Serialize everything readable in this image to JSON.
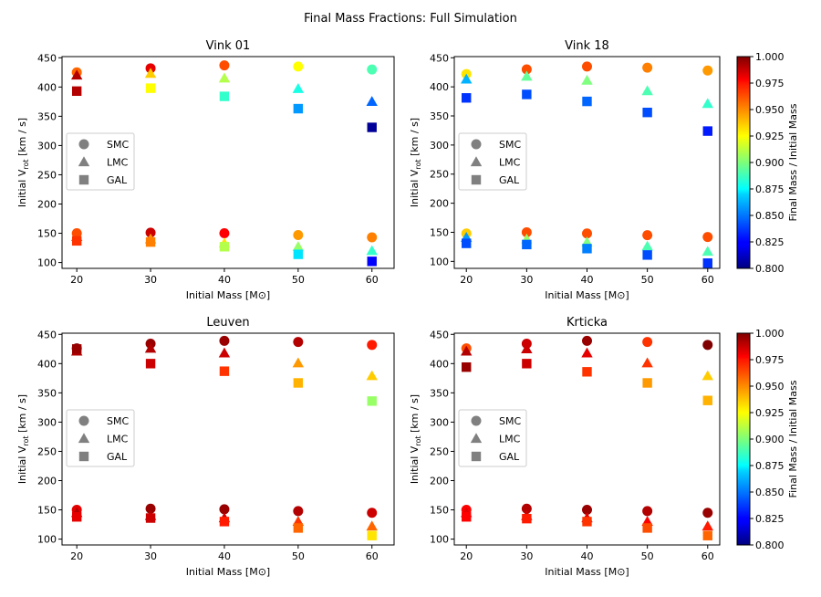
{
  "figure": {
    "title": "Final Mass Fractions: Full Simulation"
  },
  "colorbar": {
    "label": "Final Mass / Initial Mass",
    "colormap": "jet",
    "range": [
      0.8,
      1.0
    ],
    "ticks": [
      "0.800",
      "0.825",
      "0.850",
      "0.875",
      "0.900",
      "0.925",
      "0.950",
      "0.975",
      "1.000"
    ]
  },
  "legend": {
    "entries": [
      {
        "label": "SMC",
        "marker": "circle"
      },
      {
        "label": "LMC",
        "marker": "triangle"
      },
      {
        "label": "GAL",
        "marker": "square"
      }
    ],
    "marker_color": "#808080"
  },
  "chart_data": [
    {
      "type": "scatter",
      "title": "Vink 01",
      "xlabel": "Initial Mass [M",
      "xlabel_symbol": "⊙",
      "xlabel_end": "]",
      "ylabel": "Initial V",
      "ylabel_sub": "rot",
      "ylabel_end": " [km / s]",
      "x_ticks": [
        20,
        30,
        40,
        50,
        60
      ],
      "y_ticks": [
        100,
        150,
        200,
        250,
        300,
        350,
        400,
        450
      ],
      "xlim": [
        18,
        63
      ],
      "ylim": [
        90,
        452
      ],
      "legend_position": "center-left",
      "series": [
        {
          "name": "SMC",
          "marker": "circle",
          "points": [
            {
              "x": 20,
              "y": 425,
              "c": 0.955
            },
            {
              "x": 30,
              "y": 432,
              "c": 0.98
            },
            {
              "x": 40,
              "y": 437,
              "c": 0.96
            },
            {
              "x": 50,
              "y": 435,
              "c": 0.925
            },
            {
              "x": 60,
              "y": 430,
              "c": 0.89
            },
            {
              "x": 20,
              "y": 150,
              "c": 0.96
            },
            {
              "x": 30,
              "y": 151,
              "c": 0.985
            },
            {
              "x": 40,
              "y": 150,
              "c": 0.975
            },
            {
              "x": 50,
              "y": 147,
              "c": 0.945
            },
            {
              "x": 60,
              "y": 143,
              "c": 0.95
            }
          ]
        },
        {
          "name": "LMC",
          "marker": "triangle",
          "points": [
            {
              "x": 20,
              "y": 420,
              "c": 0.99
            },
            {
              "x": 30,
              "y": 423,
              "c": 0.935
            },
            {
              "x": 40,
              "y": 415,
              "c": 0.91
            },
            {
              "x": 50,
              "y": 397,
              "c": 0.88
            },
            {
              "x": 60,
              "y": 375,
              "c": 0.845
            },
            {
              "x": 20,
              "y": 144,
              "c": 0.96
            },
            {
              "x": 30,
              "y": 140,
              "c": 0.945
            },
            {
              "x": 40,
              "y": 133,
              "c": 0.93
            },
            {
              "x": 50,
              "y": 127,
              "c": 0.905
            },
            {
              "x": 60,
              "y": 120,
              "c": 0.885
            }
          ]
        },
        {
          "name": "GAL",
          "marker": "square",
          "points": [
            {
              "x": 20,
              "y": 393,
              "c": 0.99
            },
            {
              "x": 30,
              "y": 398,
              "c": 0.925
            },
            {
              "x": 40,
              "y": 384,
              "c": 0.885
            },
            {
              "x": 50,
              "y": 363,
              "c": 0.855
            },
            {
              "x": 60,
              "y": 331,
              "c": 0.805
            },
            {
              "x": 20,
              "y": 137,
              "c": 0.965
            },
            {
              "x": 30,
              "y": 135,
              "c": 0.95
            },
            {
              "x": 40,
              "y": 127,
              "c": 0.91
            },
            {
              "x": 50,
              "y": 114,
              "c": 0.87
            },
            {
              "x": 60,
              "y": 102,
              "c": 0.825
            }
          ]
        }
      ]
    },
    {
      "type": "scatter",
      "title": "Vink 18",
      "xlabel": "Initial Mass [M",
      "xlabel_symbol": "⊙",
      "xlabel_end": "]",
      "ylabel": "Initial V",
      "ylabel_sub": "rot",
      "ylabel_end": " [km / s]",
      "x_ticks": [
        20,
        30,
        40,
        50,
        60
      ],
      "y_ticks": [
        100,
        150,
        200,
        250,
        300,
        350,
        400,
        450
      ],
      "xlim": [
        18,
        62
      ],
      "ylim": [
        88,
        452
      ],
      "legend_position": "center-left",
      "series": [
        {
          "name": "SMC",
          "marker": "circle",
          "points": [
            {
              "x": 20,
              "y": 422,
              "c": 0.93
            },
            {
              "x": 30,
              "y": 430,
              "c": 0.96
            },
            {
              "x": 40,
              "y": 435,
              "c": 0.96
            },
            {
              "x": 50,
              "y": 433,
              "c": 0.95
            },
            {
              "x": 60,
              "y": 428,
              "c": 0.945
            },
            {
              "x": 20,
              "y": 148,
              "c": 0.935
            },
            {
              "x": 30,
              "y": 150,
              "c": 0.96
            },
            {
              "x": 40,
              "y": 148,
              "c": 0.96
            },
            {
              "x": 50,
              "y": 145,
              "c": 0.96
            },
            {
              "x": 60,
              "y": 142,
              "c": 0.96
            }
          ]
        },
        {
          "name": "LMC",
          "marker": "triangle",
          "points": [
            {
              "x": 20,
              "y": 413,
              "c": 0.86
            },
            {
              "x": 30,
              "y": 418,
              "c": 0.895
            },
            {
              "x": 40,
              "y": 411,
              "c": 0.9
            },
            {
              "x": 50,
              "y": 393,
              "c": 0.89
            },
            {
              "x": 60,
              "y": 371,
              "c": 0.885
            },
            {
              "x": 20,
              "y": 141,
              "c": 0.855
            },
            {
              "x": 30,
              "y": 138,
              "c": 0.905
            },
            {
              "x": 40,
              "y": 133,
              "c": 0.9
            },
            {
              "x": 50,
              "y": 126,
              "c": 0.89
            },
            {
              "x": 60,
              "y": 117,
              "c": 0.89
            }
          ]
        },
        {
          "name": "GAL",
          "marker": "square",
          "points": [
            {
              "x": 20,
              "y": 381,
              "c": 0.835
            },
            {
              "x": 30,
              "y": 387,
              "c": 0.84
            },
            {
              "x": 40,
              "y": 375,
              "c": 0.845
            },
            {
              "x": 50,
              "y": 356,
              "c": 0.84
            },
            {
              "x": 60,
              "y": 324,
              "c": 0.83
            },
            {
              "x": 20,
              "y": 131,
              "c": 0.84
            },
            {
              "x": 30,
              "y": 129,
              "c": 0.845
            },
            {
              "x": 40,
              "y": 122,
              "c": 0.85
            },
            {
              "x": 50,
              "y": 111,
              "c": 0.84
            },
            {
              "x": 60,
              "y": 97,
              "c": 0.835
            }
          ]
        }
      ]
    },
    {
      "type": "scatter",
      "title": "Leuven",
      "xlabel": "Initial Mass [M",
      "xlabel_symbol": "⊙",
      "xlabel_end": "]",
      "ylabel": "Initial V",
      "ylabel_sub": "rot",
      "ylabel_end": " [km / s]",
      "x_ticks": [
        20,
        30,
        40,
        50,
        60
      ],
      "y_ticks": [
        100,
        150,
        200,
        250,
        300,
        350,
        400,
        450
      ],
      "xlim": [
        18,
        63
      ],
      "ylim": [
        90,
        452
      ],
      "legend_position": "center-left",
      "series": [
        {
          "name": "SMC",
          "marker": "circle",
          "points": [
            {
              "x": 20,
              "y": 426,
              "c": 1.0
            },
            {
              "x": 30,
              "y": 434,
              "c": 0.995
            },
            {
              "x": 40,
              "y": 439,
              "c": 0.995
            },
            {
              "x": 50,
              "y": 437,
              "c": 0.99
            },
            {
              "x": 60,
              "y": 432,
              "c": 0.97
            },
            {
              "x": 20,
              "y": 150,
              "c": 0.98
            },
            {
              "x": 30,
              "y": 152,
              "c": 0.995
            },
            {
              "x": 40,
              "y": 151,
              "c": 0.995
            },
            {
              "x": 50,
              "y": 148,
              "c": 0.99
            },
            {
              "x": 60,
              "y": 145,
              "c": 0.985
            }
          ]
        },
        {
          "name": "LMC",
          "marker": "triangle",
          "points": [
            {
              "x": 20,
              "y": 421,
              "c": 0.99
            },
            {
              "x": 30,
              "y": 426,
              "c": 0.99
            },
            {
              "x": 40,
              "y": 418,
              "c": 0.985
            },
            {
              "x": 50,
              "y": 401,
              "c": 0.945
            },
            {
              "x": 60,
              "y": 379,
              "c": 0.935
            },
            {
              "x": 20,
              "y": 145,
              "c": 0.99
            },
            {
              "x": 30,
              "y": 140,
              "c": 0.99
            },
            {
              "x": 40,
              "y": 136,
              "c": 0.985
            },
            {
              "x": 50,
              "y": 130,
              "c": 0.965
            },
            {
              "x": 60,
              "y": 122,
              "c": 0.955
            }
          ]
        },
        {
          "name": "GAL",
          "marker": "square",
          "points": [
            {
              "x": 20,
              "y": 425,
              "c": 0.995
            },
            {
              "x": 30,
              "y": 400,
              "c": 0.985
            },
            {
              "x": 40,
              "y": 387,
              "c": 0.965
            },
            {
              "x": 50,
              "y": 367,
              "c": 0.94
            },
            {
              "x": 60,
              "y": 336,
              "c": 0.905
            },
            {
              "x": 20,
              "y": 138,
              "c": 0.98
            },
            {
              "x": 30,
              "y": 136,
              "c": 0.985
            },
            {
              "x": 40,
              "y": 130,
              "c": 0.97
            },
            {
              "x": 50,
              "y": 119,
              "c": 0.955
            },
            {
              "x": 60,
              "y": 106,
              "c": 0.93
            }
          ]
        }
      ]
    },
    {
      "type": "scatter",
      "title": "Krticka",
      "xlabel": "Initial Mass [M",
      "xlabel_symbol": "⊙",
      "xlabel_end": "]",
      "ylabel": "Initial V",
      "ylabel_sub": "rot",
      "ylabel_end": " [km / s]",
      "x_ticks": [
        20,
        30,
        40,
        50,
        60
      ],
      "y_ticks": [
        100,
        150,
        200,
        250,
        300,
        350,
        400,
        450
      ],
      "xlim": [
        18,
        62
      ],
      "ylim": [
        90,
        452
      ],
      "legend_position": "center-left",
      "series": [
        {
          "name": "SMC",
          "marker": "circle",
          "points": [
            {
              "x": 20,
              "y": 426,
              "c": 0.96
            },
            {
              "x": 30,
              "y": 434,
              "c": 0.985
            },
            {
              "x": 40,
              "y": 439,
              "c": 0.995
            },
            {
              "x": 50,
              "y": 437,
              "c": 0.965
            },
            {
              "x": 60,
              "y": 432,
              "c": 1.0
            },
            {
              "x": 20,
              "y": 150,
              "c": 0.975
            },
            {
              "x": 30,
              "y": 152,
              "c": 0.99
            },
            {
              "x": 40,
              "y": 150,
              "c": 0.995
            },
            {
              "x": 50,
              "y": 148,
              "c": 0.99
            },
            {
              "x": 60,
              "y": 145,
              "c": 0.995
            }
          ]
        },
        {
          "name": "LMC",
          "marker": "triangle",
          "points": [
            {
              "x": 20,
              "y": 421,
              "c": 0.99
            },
            {
              "x": 30,
              "y": 425,
              "c": 0.985
            },
            {
              "x": 40,
              "y": 418,
              "c": 0.98
            },
            {
              "x": 50,
              "y": 401,
              "c": 0.965
            },
            {
              "x": 60,
              "y": 379,
              "c": 0.935
            },
            {
              "x": 20,
              "y": 145,
              "c": 0.98
            },
            {
              "x": 30,
              "y": 140,
              "c": 0.985
            },
            {
              "x": 40,
              "y": 136,
              "c": 0.98
            },
            {
              "x": 50,
              "y": 130,
              "c": 0.975
            },
            {
              "x": 60,
              "y": 122,
              "c": 0.97
            }
          ]
        },
        {
          "name": "GAL",
          "marker": "square",
          "points": [
            {
              "x": 20,
              "y": 394,
              "c": 0.995
            },
            {
              "x": 30,
              "y": 400,
              "c": 0.985
            },
            {
              "x": 40,
              "y": 386,
              "c": 0.965
            },
            {
              "x": 50,
              "y": 367,
              "c": 0.945
            },
            {
              "x": 60,
              "y": 337,
              "c": 0.94
            },
            {
              "x": 20,
              "y": 138,
              "c": 0.975
            },
            {
              "x": 30,
              "y": 135,
              "c": 0.97
            },
            {
              "x": 40,
              "y": 130,
              "c": 0.965
            },
            {
              "x": 50,
              "y": 119,
              "c": 0.96
            },
            {
              "x": 60,
              "y": 106,
              "c": 0.955
            }
          ]
        }
      ]
    }
  ]
}
